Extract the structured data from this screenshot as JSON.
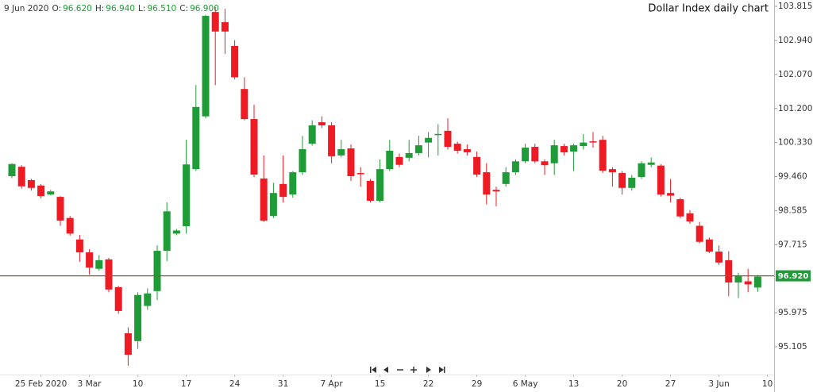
{
  "chart_data": {
    "type": "candlestick",
    "title": "Dollar Index daily chart",
    "header": {
      "date": "9 Jun 2020",
      "fields": [
        {
          "label": "O:",
          "value": "96.620"
        },
        {
          "label": "H:",
          "value": "96.940"
        },
        {
          "label": "L:",
          "value": "96.510"
        },
        {
          "label": "C:",
          "value": "96.900"
        }
      ]
    },
    "up_color": "#1f9b37",
    "down_color": "#ee1b25",
    "open": [
      99.47,
      99.71,
      99.37,
      99.23,
      99.0,
      98.94,
      98.4,
      97.85,
      97.52,
      97.1,
      97.34,
      96.63,
      95.45,
      95.25,
      96.15,
      96.53,
      97.56,
      98.0,
      98.19,
      99.65,
      101.0,
      103.67,
      103.41,
      102.8,
      101.7,
      100.93,
      99.41,
      98.45,
      99.27,
      99.0,
      99.57,
      100.3,
      100.85,
      100.77,
      100.0,
      100.18,
      99.55,
      99.35,
      98.84,
      99.65,
      99.96,
      99.94,
      100.06,
      100.33,
      100.52,
      100.63,
      100.3,
      100.16,
      99.96,
      99.57,
      99.12,
      99.27,
      99.57,
      99.85,
      100.22,
      99.85,
      99.8,
      100.24,
      100.1,
      100.24,
      100.36,
      100.4,
      99.65,
      99.55,
      99.17,
      99.45,
      99.76,
      99.74,
      99.04,
      98.88,
      98.52,
      98.2,
      97.85,
      97.54,
      97.32,
      96.75,
      96.78,
      96.62
    ],
    "high": [
      99.8,
      99.75,
      99.4,
      99.27,
      99.12,
      98.96,
      98.45,
      97.97,
      97.6,
      97.45,
      97.38,
      96.66,
      95.6,
      96.5,
      96.6,
      97.7,
      98.8,
      98.12,
      100.4,
      101.8,
      103.6,
      103.8,
      103.75,
      102.95,
      102.0,
      101.3,
      100.0,
      99.3,
      100.0,
      99.6,
      100.5,
      100.9,
      101.0,
      100.85,
      100.4,
      100.28,
      99.7,
      99.4,
      99.9,
      100.4,
      100.05,
      100.4,
      100.5,
      100.6,
      100.8,
      100.95,
      100.35,
      100.28,
      100.1,
      99.8,
      99.2,
      99.7,
      99.9,
      100.3,
      100.3,
      99.9,
      100.4,
      100.3,
      100.3,
      100.55,
      100.6,
      100.5,
      99.7,
      99.6,
      99.5,
      99.85,
      99.95,
      99.78,
      99.4,
      98.92,
      98.6,
      98.3,
      97.9,
      97.7,
      97.55,
      97.0,
      97.1,
      96.94
    ],
    "low": [
      99.42,
      99.15,
      99.1,
      98.9,
      98.98,
      98.2,
      97.95,
      97.28,
      96.95,
      97.05,
      96.5,
      95.95,
      94.62,
      95.05,
      96.05,
      96.3,
      97.3,
      97.96,
      98.0,
      99.6,
      100.95,
      101.8,
      102.6,
      101.95,
      100.9,
      99.45,
      98.3,
      98.4,
      98.8,
      98.92,
      99.5,
      100.25,
      100.7,
      99.8,
      99.95,
      99.35,
      99.2,
      98.8,
      98.8,
      99.6,
      99.7,
      99.85,
      100.0,
      99.95,
      100.0,
      100.15,
      100.05,
      100.0,
      99.45,
      98.75,
      98.7,
      99.2,
      99.5,
      99.8,
      99.8,
      99.5,
      99.5,
      100.0,
      99.6,
      100.15,
      100.2,
      99.55,
      99.2,
      99.0,
      99.1,
      99.4,
      99.7,
      98.95,
      98.8,
      98.4,
      98.25,
      97.75,
      97.5,
      97.2,
      96.4,
      96.35,
      96.5,
      96.51
    ],
    "close": [
      99.78,
      99.21,
      99.17,
      98.96,
      99.08,
      98.33,
      98.0,
      97.52,
      97.13,
      97.32,
      96.57,
      96.02,
      94.9,
      96.43,
      96.47,
      97.56,
      98.57,
      98.08,
      99.77,
      101.24,
      103.57,
      103.17,
      103.17,
      102.0,
      100.93,
      99.51,
      98.33,
      99.04,
      98.94,
      99.57,
      100.16,
      100.77,
      100.77,
      99.98,
      100.16,
      99.47,
      99.53,
      98.84,
      99.65,
      100.12,
      99.76,
      100.06,
      100.26,
      100.45,
      100.55,
      100.22,
      100.12,
      100.08,
      99.51,
      99.0,
      99.08,
      99.57,
      99.85,
      100.2,
      99.85,
      99.75,
      100.26,
      100.08,
      100.26,
      100.33,
      100.34,
      99.61,
      99.57,
      99.17,
      99.43,
      99.8,
      99.82,
      99.0,
      98.97,
      98.44,
      98.31,
      97.79,
      97.54,
      97.26,
      96.75,
      96.93,
      96.7,
      96.9
    ],
    "last": {
      "value": 96.92,
      "label": "96.920",
      "color": "#8a5a2e",
      "label_color": "#1f9b37"
    },
    "ylim": [
      94.435,
      103.977
    ],
    "yticks": [
      103.815,
      {
        "value": 102.94,
        "label": "102.940"
      },
      {
        "value": 102.07,
        "label": "102.070"
      },
      {
        "value": 101.2,
        "label": "101.200"
      },
      {
        "value": 100.33,
        "label": "100.330"
      },
      {
        "value": 99.46,
        "label": "99.460"
      },
      98.585,
      97.715,
      95.975,
      95.105
    ],
    "xlim": [
      -1.23,
      78.69
    ],
    "xticks": [
      {
        "value": 3,
        "label": "25 Feb 2020"
      },
      {
        "value": 8,
        "label": "3 Mar"
      },
      {
        "value": 13,
        "label": "10"
      },
      {
        "value": 18,
        "label": "17"
      },
      {
        "value": 23,
        "label": "24"
      },
      {
        "value": 28,
        "label": "31"
      },
      {
        "value": 33,
        "label": "7 Apr"
      },
      {
        "value": 38,
        "label": "15"
      },
      {
        "value": 43,
        "label": "22"
      },
      {
        "value": 48,
        "label": "29"
      },
      {
        "value": 53,
        "label": "6 May"
      },
      {
        "value": 58,
        "label": "13"
      },
      {
        "value": 63,
        "label": "20"
      },
      {
        "value": 68,
        "label": "27"
      },
      {
        "value": 73,
        "label": "3 Jun"
      },
      {
        "value": 78,
        "label": "10"
      }
    ]
  }
}
